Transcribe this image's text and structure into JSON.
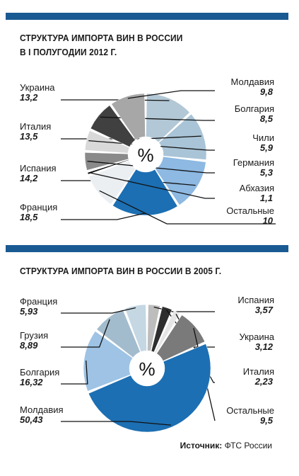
{
  "colors": {
    "rule": "#1a5a92",
    "slice_palette": [
      "#a6bfd1",
      "#9fc0d8",
      "#8fb8e0",
      "#1c6fb3",
      "#e9eef3",
      "#3a3a3a",
      "#bdbdbd",
      "#dcdcdc",
      "#6e6e6e",
      "#f4f4f4"
    ]
  },
  "source": {
    "label": "Источник:",
    "text": "ФТС России"
  },
  "chart_data": [
    {
      "type": "pie",
      "title": "СТРУКТУРА ИМПОРТА ВИН В РОССИИ",
      "subtitle": "В I ПОЛУГОДИИ 2012 Г.",
      "center_label": "%",
      "slices": [
        {
          "name": "Украина",
          "value": "13,2",
          "v": 13.2,
          "color": "#b3c8d6"
        },
        {
          "name": "Италия",
          "value": "13,5",
          "v": 13.5,
          "color": "#a9c4d6"
        },
        {
          "name": "Испания",
          "value": "14,2",
          "v": 14.2,
          "color": "#8db9e2"
        },
        {
          "name": "Франция",
          "value": "18,5",
          "v": 18.5,
          "color": "#1c6fb3"
        },
        {
          "name": "Остальные",
          "value": "10",
          "v": 10,
          "color": "#eceff2"
        },
        {
          "name": "Абхазия",
          "value": "1,1",
          "v": 1.1,
          "color": "#111111"
        },
        {
          "name": "Германия",
          "value": "5,3",
          "v": 5.3,
          "color": "#8a8a8a"
        },
        {
          "name": "Чили",
          "value": "5,9",
          "v": 5.9,
          "color": "#d9d9d9"
        },
        {
          "name": "Болгария",
          "value": "8,5",
          "v": 8.5,
          "color": "#404040"
        },
        {
          "name": "Молдавия",
          "value": "9,8",
          "v": 9.8,
          "color": "#a7a7a7"
        }
      ]
    },
    {
      "type": "pie",
      "title": "СТРУКТУРА ИМПОРТА ВИН В РОССИИ В 2005 Г.",
      "subtitle": "",
      "center_label": "%",
      "slices": [
        {
          "name": "Испания",
          "value": "3,57",
          "v": 3.57,
          "color": "#bdbdbd"
        },
        {
          "name": "Украина",
          "value": "3,12",
          "v": 3.12,
          "color": "#2e2e2e"
        },
        {
          "name": "Италия",
          "value": "2,23",
          "v": 2.23,
          "color": "#e6e6e6"
        },
        {
          "name": "Остальные",
          "value": "9,5",
          "v": 9.5,
          "color": "#7a7a7a"
        },
        {
          "name": "Молдавия",
          "value": "50,43",
          "v": 50.43,
          "color": "#1c6fb3"
        },
        {
          "name": "Болгария",
          "value": "16,32",
          "v": 16.32,
          "color": "#9ec3e4"
        },
        {
          "name": "Грузия",
          "value": "8,89",
          "v": 8.89,
          "color": "#a3bccd"
        },
        {
          "name": "Франция",
          "value": "5,93",
          "v": 5.93,
          "color": "#c4d7e3"
        }
      ]
    }
  ]
}
